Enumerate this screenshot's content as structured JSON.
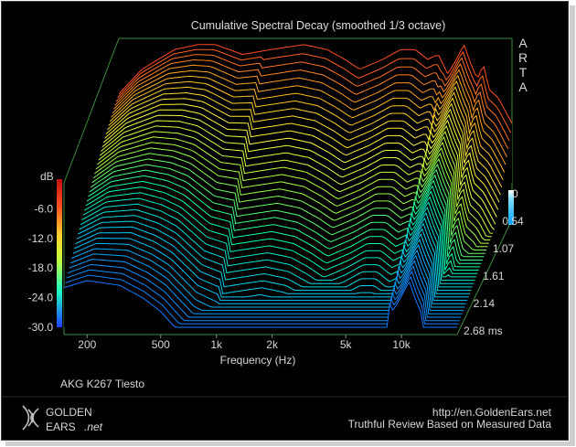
{
  "chart_data": {
    "type": "waterfall-3d",
    "title": "Cumulative Spectral Decay (smoothed 1/3 octave)",
    "xlabel": "Frequency (Hz)",
    "zlabel": "dB",
    "watermark": "ARTA",
    "x_scale": "log",
    "x_ticks": [
      "200",
      "500",
      "1k",
      "2k",
      "5k",
      "10k"
    ],
    "x_tick_values": [
      200,
      500,
      1000,
      2000,
      5000,
      10000
    ],
    "xlim": [
      150,
      20000
    ],
    "y_ticks": [
      "-6.0",
      "-12.0",
      "-18.0",
      "-24.0",
      "-30.0"
    ],
    "y_label_top": "dB",
    "ylim": [
      -30,
      0
    ],
    "time_ticks": [
      "0",
      "0.54",
      "1.07",
      "1.61",
      "2.14",
      "2.68 ms"
    ],
    "time_tick_values": [
      0,
      0.54,
      1.07,
      1.61,
      2.14,
      2.68
    ],
    "time_unit": "ms",
    "slices": 44,
    "initial_response_profile": {
      "freq_hz": [
        150,
        200,
        300,
        400,
        500,
        700,
        1000,
        1500,
        2000,
        2500,
        3000,
        4000,
        5000,
        6000,
        7000,
        8000,
        9000,
        10000,
        11000,
        12000,
        13000,
        14000,
        15000,
        17000,
        20000
      ],
      "level_db": [
        -12,
        -7,
        -3,
        -2,
        -2,
        -4,
        -3,
        -2,
        -3,
        -5,
        -7,
        -5,
        -3,
        -3,
        -5,
        -4,
        -8,
        -5,
        -2,
        -6,
        -9,
        -6,
        -11,
        -13,
        -18
      ]
    },
    "colormap": [
      "#2020ff",
      "#00c8ff",
      "#00ffb0",
      "#a0ff40",
      "#ffff40",
      "#ffb020",
      "#ff4020",
      "#c01010"
    ]
  },
  "footer": {
    "device": "AKG K267 Tiesto",
    "brand_line1": "GOLDEN",
    "brand_line2": "EARS",
    "brand_suffix": ".net",
    "url": "http://en.GoldenEars.net",
    "tagline": "Truthful Review Based on Measured Data"
  }
}
